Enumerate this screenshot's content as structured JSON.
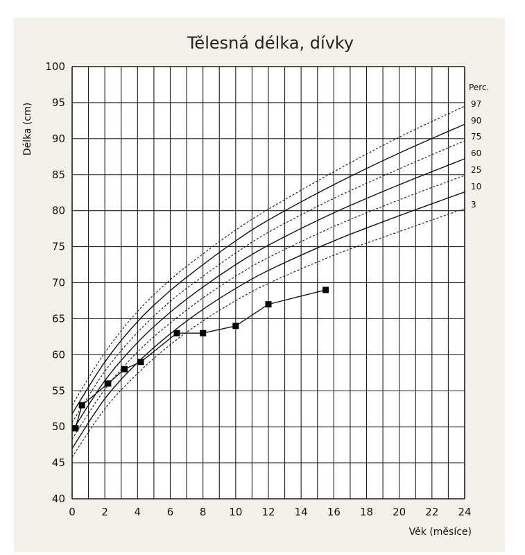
{
  "chart_data": {
    "type": "line",
    "title": "Tělesná délka, dívky",
    "xlabel": "Věk (měsíce)",
    "ylabel": "Délka (cm)",
    "xlim": [
      0,
      24
    ],
    "ylim": [
      40,
      100
    ],
    "xticks": [
      0,
      2,
      4,
      6,
      8,
      10,
      12,
      14,
      16,
      18,
      20,
      22,
      24
    ],
    "yticks": [
      40,
      45,
      50,
      55,
      60,
      65,
      70,
      75,
      80,
      85,
      90,
      95,
      100
    ],
    "grid": true,
    "percentile_header": "Perc.",
    "percentile_curves": [
      {
        "name": "97",
        "style": "dashed",
        "x": [
          0,
          2,
          4,
          6,
          8,
          10,
          12,
          16,
          20,
          24
        ],
        "y": [
          53.0,
          60.3,
          66.0,
          70.4,
          74.0,
          77.3,
          80.2,
          85.4,
          90.2,
          94.5
        ]
      },
      {
        "name": "90",
        "style": "solid",
        "x": [
          0,
          2,
          4,
          6,
          8,
          10,
          12,
          16,
          20,
          24
        ],
        "y": [
          51.8,
          59.0,
          64.6,
          68.9,
          72.5,
          75.8,
          78.7,
          83.6,
          88.0,
          92.0
        ]
      },
      {
        "name": "75",
        "style": "dashed",
        "x": [
          0,
          2,
          4,
          6,
          8,
          10,
          12,
          16,
          20,
          24
        ],
        "y": [
          50.6,
          57.7,
          63.1,
          67.4,
          70.9,
          74.1,
          77.0,
          81.7,
          85.8,
          89.7
        ]
      },
      {
        "name": "60",
        "style": "solid",
        "x": [
          0,
          2,
          4,
          6,
          8,
          10,
          12,
          16,
          20,
          24
        ],
        "y": [
          49.4,
          56.4,
          61.7,
          65.9,
          69.4,
          72.5,
          75.2,
          79.7,
          83.6,
          87.2
        ]
      },
      {
        "name": "25",
        "style": "dashed",
        "x": [
          0,
          2,
          4,
          6,
          8,
          10,
          12,
          16,
          20,
          24
        ],
        "y": [
          48.3,
          55.2,
          60.4,
          64.4,
          67.9,
          70.9,
          73.5,
          77.8,
          81.5,
          84.9
        ]
      },
      {
        "name": "10",
        "style": "solid",
        "x": [
          0,
          2,
          4,
          6,
          8,
          10,
          12,
          16,
          20,
          24
        ],
        "y": [
          47.0,
          53.9,
          58.9,
          62.9,
          66.3,
          69.2,
          71.7,
          75.8,
          79.3,
          82.6
        ]
      },
      {
        "name": "3",
        "style": "dashed",
        "x": [
          0,
          2,
          4,
          6,
          8,
          10,
          12,
          16,
          20,
          24
        ],
        "y": [
          45.8,
          52.5,
          57.4,
          61.4,
          64.7,
          67.5,
          69.9,
          73.8,
          77.1,
          80.3
        ]
      }
    ],
    "measurements": {
      "x": [
        0.2,
        0.6,
        2.2,
        3.2,
        4.2,
        6.4,
        8.0,
        10.0,
        12.0,
        15.5
      ],
      "y": [
        49.8,
        53.0,
        56.0,
        58.0,
        59.0,
        63.0,
        63.0,
        64.0,
        67.0,
        69.0
      ]
    }
  }
}
